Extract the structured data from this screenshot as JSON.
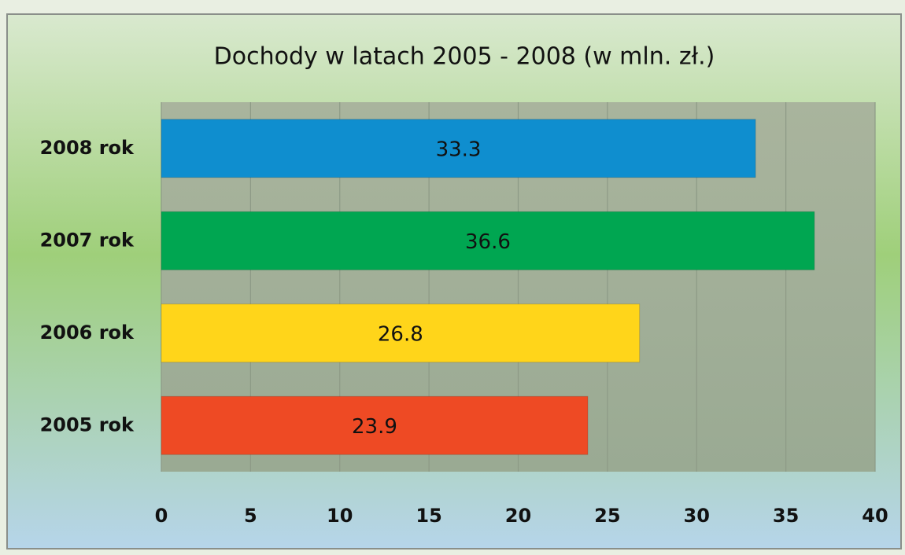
{
  "chart_data": {
    "type": "bar",
    "orientation": "horizontal",
    "title": "Dochody w latach 2005 - 2008 (w mln. zł.)",
    "categories": [
      "2008 rok",
      "2007 rok",
      "2006 rok",
      "2005 rok"
    ],
    "values": [
      33.3,
      36.6,
      26.8,
      23.9
    ],
    "colors": [
      "#0f8ecf",
      "#00a651",
      "#ffd51a",
      "#ee4a24"
    ],
    "xlim": [
      0,
      40
    ],
    "xticks": [
      0,
      5,
      10,
      15,
      20,
      25,
      30,
      35,
      40
    ],
    "grid": true
  }
}
